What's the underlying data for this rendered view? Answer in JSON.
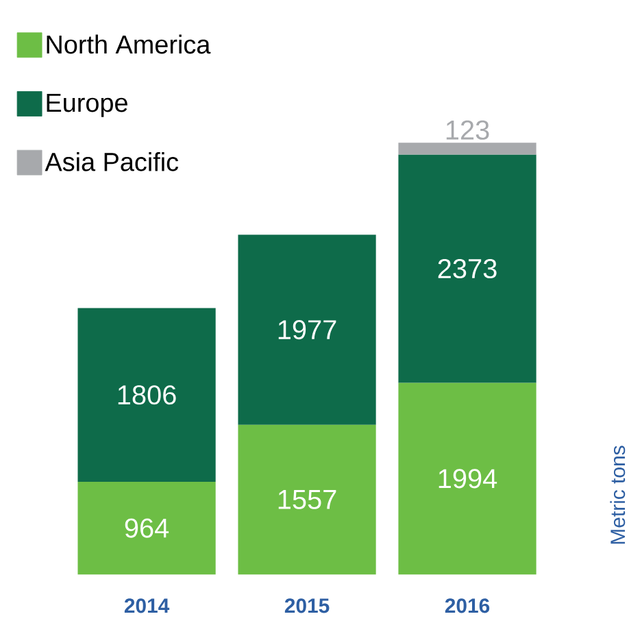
{
  "chart_data": {
    "type": "bar",
    "stacked": true,
    "categories": [
      "2014",
      "2015",
      "2016"
    ],
    "series": [
      {
        "name": "North America",
        "color": "#6dbe45",
        "values": [
          964,
          1557,
          1994
        ]
      },
      {
        "name": "Europe",
        "color": "#0e6b4a",
        "values": [
          1806,
          1977,
          2373
        ]
      },
      {
        "name": "Asia Pacific",
        "color": "#a7a9ac",
        "values": [
          null,
          null,
          123
        ]
      }
    ],
    "annotations": [
      "Metric tons"
    ],
    "data_labels": true,
    "legend": "top left"
  }
}
